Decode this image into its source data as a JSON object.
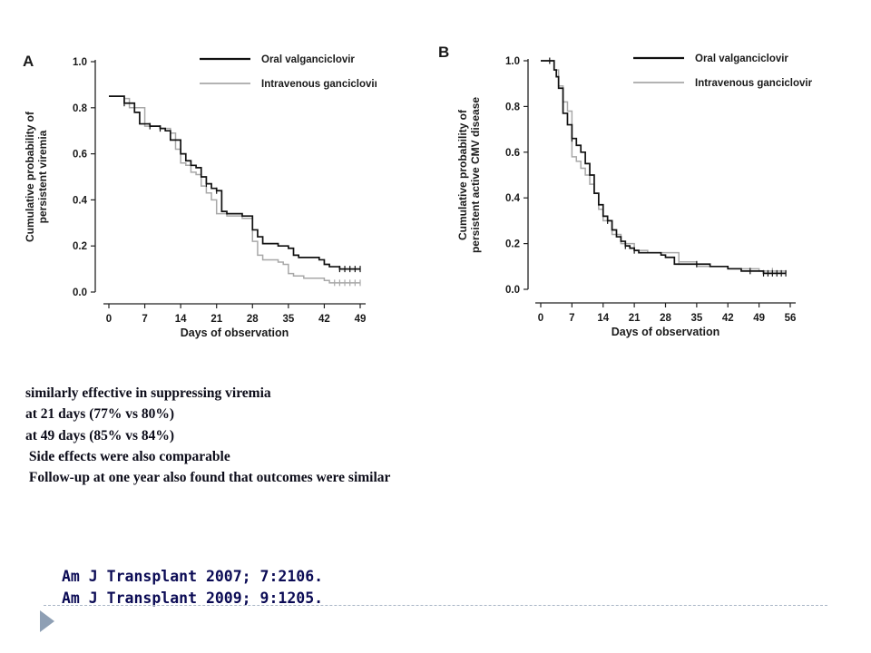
{
  "chart_data": [
    {
      "type": "line",
      "panel_label": "A",
      "xlabel": "Days of observation",
      "ylabel_lines": [
        "Cumulative probability of",
        "persistent viremia"
      ],
      "xlim": [
        0,
        49
      ],
      "ylim": [
        0,
        1
      ],
      "xticks": [
        0,
        7,
        14,
        21,
        28,
        35,
        42,
        49
      ],
      "yticks": [
        0,
        0.2,
        0.4,
        0.6,
        0.8,
        1.0
      ],
      "ytick_labels": [
        "0.0",
        "0.2",
        "0.4",
        "0.6",
        "0.8",
        "1.0"
      ],
      "legend_position": "top-right",
      "series": [
        {
          "name": "Oral valganciclovir",
          "color": "#111111",
          "x": [
            0,
            2.5,
            3,
            5,
            6,
            8,
            10,
            11,
            12,
            13,
            14,
            15,
            16,
            17,
            18,
            19,
            20,
            21,
            22,
            23,
            25,
            26,
            27,
            28,
            29,
            30,
            33,
            35,
            36,
            37,
            41,
            42,
            43,
            45,
            49
          ],
          "y": [
            0.85,
            0.85,
            0.82,
            0.78,
            0.73,
            0.72,
            0.71,
            0.7,
            0.66,
            0.66,
            0.6,
            0.57,
            0.55,
            0.54,
            0.5,
            0.47,
            0.45,
            0.44,
            0.35,
            0.34,
            0.34,
            0.33,
            0.33,
            0.27,
            0.24,
            0.21,
            0.2,
            0.19,
            0.16,
            0.15,
            0.14,
            0.12,
            0.11,
            0.1,
            0.1
          ],
          "censor_x": [
            3,
            8,
            10,
            19,
            21,
            45,
            46,
            47,
            48,
            49
          ]
        },
        {
          "name": "Intravenous ganciclovir",
          "color": "#a8a8a8",
          "x": [
            0,
            3,
            4,
            6,
            7,
            10,
            12,
            13,
            14,
            15,
            16,
            17,
            18,
            19,
            20,
            21,
            23,
            25,
            26,
            27,
            28,
            29,
            30,
            33,
            34,
            35,
            36,
            38,
            42,
            43,
            49
          ],
          "y": [
            0.85,
            0.84,
            0.8,
            0.8,
            0.72,
            0.71,
            0.69,
            0.62,
            0.56,
            0.55,
            0.52,
            0.51,
            0.46,
            0.43,
            0.4,
            0.34,
            0.33,
            0.33,
            0.32,
            0.32,
            0.22,
            0.16,
            0.14,
            0.13,
            0.12,
            0.08,
            0.07,
            0.06,
            0.05,
            0.04,
            0.04
          ],
          "censor_x": [
            3,
            44,
            45,
            46,
            47,
            48,
            49
          ]
        }
      ]
    },
    {
      "type": "line",
      "panel_label": "B",
      "xlabel": "Days of observation",
      "ylabel_lines": [
        "Cumulative probability of",
        "persistent active CMV disease"
      ],
      "xlim": [
        0,
        56
      ],
      "ylim": [
        0,
        1
      ],
      "xticks": [
        0,
        7,
        14,
        21,
        28,
        35,
        42,
        49,
        56
      ],
      "yticks": [
        0,
        0.2,
        0.4,
        0.6,
        0.8,
        1.0
      ],
      "ytick_labels": [
        "0.0",
        "0.2",
        "0.4",
        "0.6",
        "0.8",
        "1.0"
      ],
      "legend_position": "top-right",
      "series": [
        {
          "name": "Oral valganciclovir",
          "color": "#111111",
          "x": [
            0,
            2,
            3,
            3.5,
            4,
            5,
            6,
            7,
            8,
            9,
            10,
            11,
            12,
            13,
            14,
            15,
            16,
            17,
            18,
            19,
            20,
            21,
            22,
            24,
            27,
            28,
            30,
            35,
            38,
            42,
            45,
            47,
            50,
            55
          ],
          "y": [
            1.0,
            1.0,
            0.96,
            0.93,
            0.88,
            0.77,
            0.72,
            0.66,
            0.63,
            0.6,
            0.55,
            0.5,
            0.42,
            0.37,
            0.32,
            0.3,
            0.26,
            0.23,
            0.21,
            0.19,
            0.18,
            0.17,
            0.16,
            0.16,
            0.15,
            0.14,
            0.11,
            0.11,
            0.1,
            0.09,
            0.08,
            0.08,
            0.07,
            0.07
          ],
          "censor_x": [
            2,
            7,
            15,
            19,
            21,
            35,
            47,
            50,
            51,
            52,
            53,
            54,
            55
          ]
        },
        {
          "name": "Intravenous ganciclovir",
          "color": "#a8a8a8",
          "x": [
            0,
            3,
            4,
            5,
            6,
            7,
            8,
            9,
            10,
            11,
            12,
            13,
            14,
            16,
            18,
            21,
            24,
            28,
            31,
            35,
            42,
            49,
            55
          ],
          "y": [
            1.0,
            0.96,
            0.89,
            0.82,
            0.78,
            0.58,
            0.56,
            0.53,
            0.5,
            0.46,
            0.42,
            0.35,
            0.3,
            0.24,
            0.2,
            0.17,
            0.16,
            0.16,
            0.12,
            0.1,
            0.09,
            0.08,
            0.07
          ],
          "censor_x": [
            31,
            52
          ]
        }
      ]
    }
  ],
  "notes": [
    "similarly effective in suppressing viremia",
    "at 21 days (77% vs 80%)",
    "at 49 days (85% vs 84%)",
    "",
    " Side effects were also comparable",
    "",
    " Follow-up at one year also found that outcomes were similar"
  ],
  "references": [
    "Am J Transplant 2007; 7:2106.",
    "Am J Transplant 2009; 9:1205."
  ]
}
